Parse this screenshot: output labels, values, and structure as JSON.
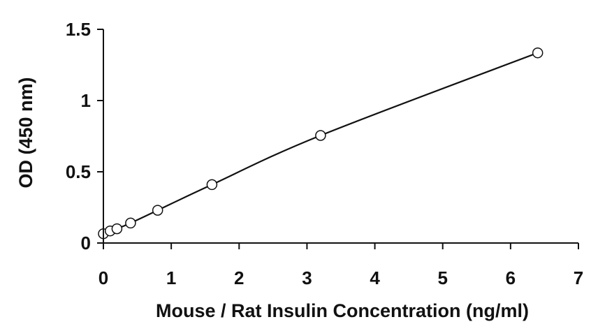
{
  "chart_data": {
    "type": "scatter",
    "title": "",
    "xlabel": "Mouse / Rat Insulin Concentration (ng/ml)",
    "ylabel": "OD (450 nm)",
    "xlim": [
      0,
      7
    ],
    "ylim": [
      0,
      1.5
    ],
    "x_ticks": [
      0,
      1,
      2,
      3,
      4,
      5,
      6,
      7
    ],
    "x_tick_labels": [
      "0",
      "1",
      "2",
      "3",
      "4",
      "5",
      "6",
      "7"
    ],
    "y_ticks": [
      0,
      0.5,
      1,
      1.5
    ],
    "y_tick_labels": [
      "0",
      "0.5",
      "1",
      "1.5"
    ],
    "grid": false,
    "legend": "none",
    "series": [
      {
        "x": [
          0,
          0.1,
          0.2,
          0.4,
          0.8,
          1.6,
          3.2,
          6.4
        ],
        "y": [
          0.065,
          0.085,
          0.1,
          0.14,
          0.23,
          0.41,
          0.755,
          1.335
        ],
        "marker": "open-circle",
        "fit_line": "smooth-curve"
      }
    ],
    "colors": {
      "axis": "#111111",
      "marker": "#111111",
      "line": "#111111"
    }
  }
}
